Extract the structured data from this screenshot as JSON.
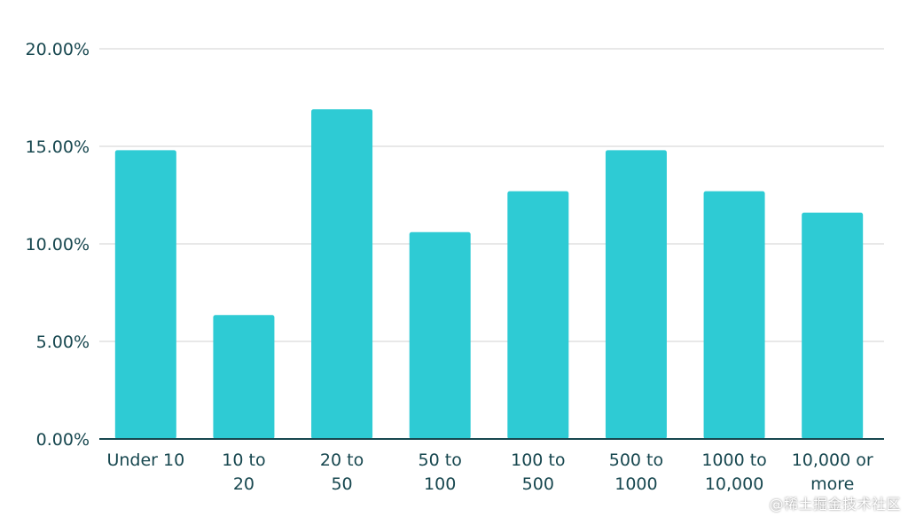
{
  "chart_data": {
    "type": "bar",
    "title": "",
    "xlabel": "",
    "ylabel": "",
    "categories": [
      [
        "Under 10"
      ],
      [
        "10 to",
        "20"
      ],
      [
        "20 to",
        "50"
      ],
      [
        "50 to",
        "100"
      ],
      [
        "100 to",
        "500"
      ],
      [
        "500 to",
        "1000"
      ],
      [
        "1000 to",
        "10,000"
      ],
      [
        "10,000 or",
        "more"
      ]
    ],
    "values": [
      14.8,
      6.35,
      16.9,
      10.6,
      12.7,
      14.8,
      12.7,
      11.6
    ],
    "ylim": [
      0,
      20
    ],
    "yticks": [
      "0.00%",
      "5.00%",
      "10.00%",
      "15.00%",
      "20.00%"
    ],
    "ytick_values": [
      0,
      5,
      10,
      15,
      20
    ],
    "grid": true,
    "bar_color": "#2ecbd4",
    "grid_color": "#d9d9d9",
    "axis_color": "#17474f"
  },
  "watermark": "@稀土掘金技术社区"
}
